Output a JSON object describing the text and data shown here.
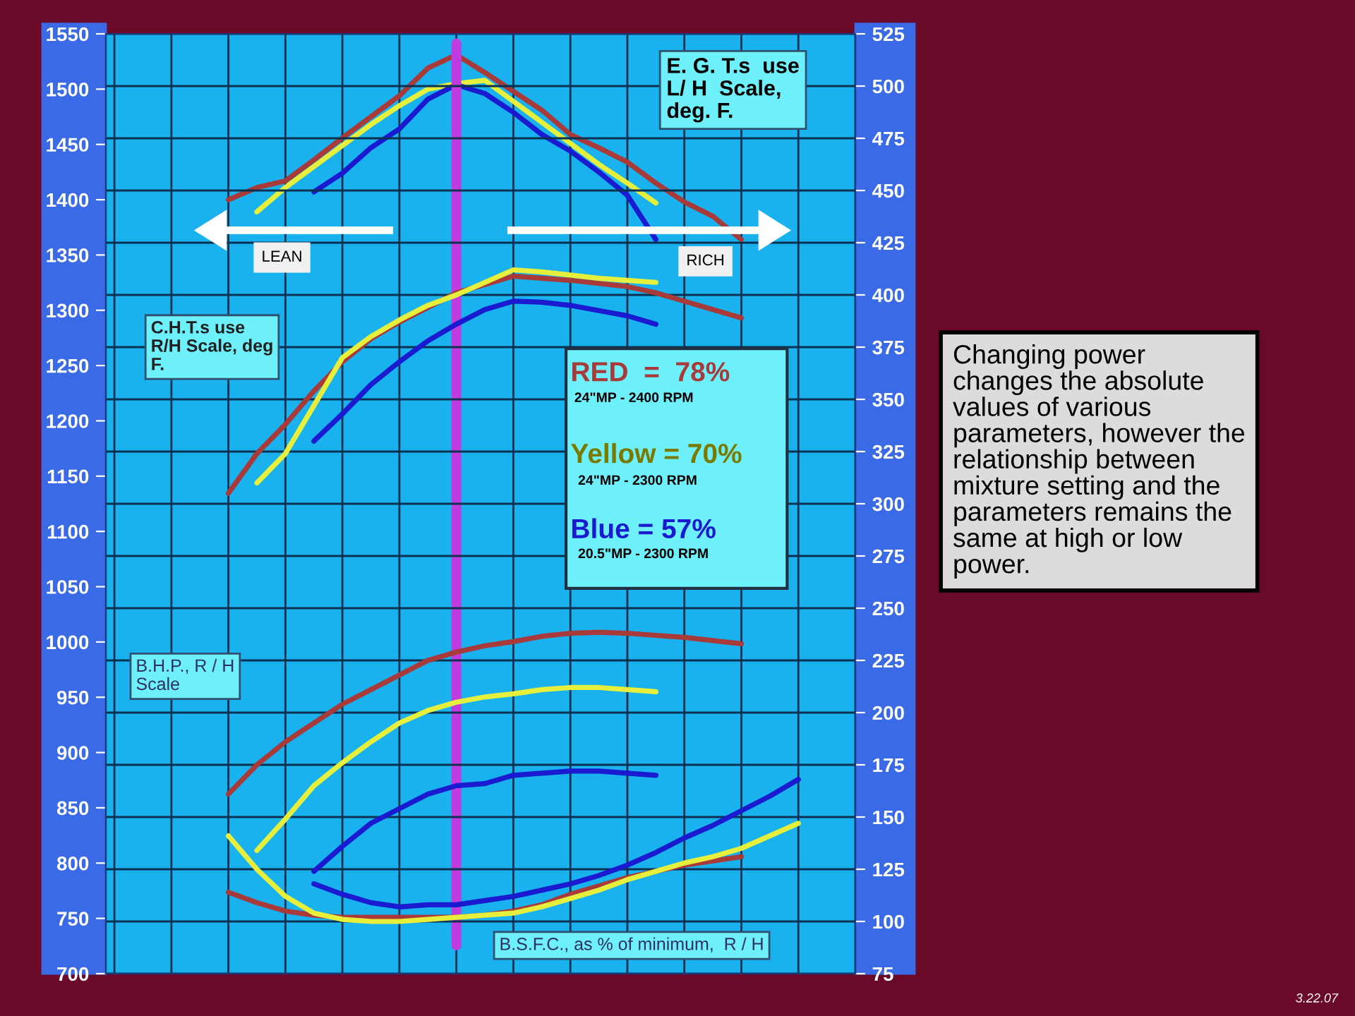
{
  "chart_data": {
    "type": "line",
    "categories": [
      null,
      null,
      null,
      null,
      null,
      null,
      null,
      null,
      null,
      null,
      null,
      null,
      null,
      null,
      null,
      null,
      null,
      null,
      null,
      null,
      null,
      null,
      null,
      null,
      null,
      null,
      null
    ],
    "ylim": [
      700,
      1550
    ],
    "yticks": [
      700,
      750,
      800,
      850,
      900,
      950,
      1000,
      1050,
      1100,
      1150,
      1200,
      1250,
      1300,
      1350,
      1400,
      1450,
      1500,
      1550
    ],
    "y2lim": [
      75,
      525
    ],
    "y2ticks": [
      75,
      100,
      125,
      150,
      175,
      200,
      225,
      250,
      275,
      300,
      325,
      350,
      375,
      400,
      425,
      450,
      475,
      500,
      525
    ],
    "tick_labels": "y",
    "grid": true,
    "legend": false,
    "marker": "none",
    "line_style": "solid",
    "series": [
      {
        "color": "#a83a3a",
        "values": [
          null,
          null,
          null,
          null,
          1400,
          1411,
          1417,
          1436,
          1456,
          1475,
          1494,
          1519,
          1531,
          1515,
          1498,
          1481,
          1459,
          1447,
          1434,
          1415,
          1398,
          1385,
          1364,
          null,
          null,
          null,
          null
        ]
      },
      {
        "color": "#e6f03c",
        "values": [
          null,
          null,
          null,
          null,
          null,
          1389,
          1411,
          1430,
          1449,
          1468,
          1485,
          1500,
          1505,
          1508,
          1489,
          1470,
          1451,
          1432,
          1415,
          1397,
          null,
          null,
          null,
          null,
          null,
          null,
          null
        ]
      },
      {
        "color": "#1a1ad0",
        "values": [
          null,
          null,
          null,
          null,
          null,
          null,
          null,
          1407,
          1424,
          1447,
          1464,
          1491,
          1504,
          1496,
          1479,
          1459,
          1444,
          1425,
          1404,
          1364,
          null,
          null,
          null,
          null,
          null,
          null,
          null
        ]
      },
      {
        "color": "#a83a3a",
        "axis": "y2",
        "values": [
          null,
          null,
          null,
          null,
          305,
          324,
          338,
          354,
          368,
          379,
          387,
          394,
          401,
          405,
          409,
          408,
          407,
          405.5,
          404,
          401,
          397,
          393,
          389,
          null,
          null,
          null,
          null
        ]
      },
      {
        "color": "#e6f03c",
        "axis": "y2",
        "values": [
          null,
          null,
          null,
          null,
          null,
          310,
          324,
          347,
          370,
          380,
          388,
          395,
          400,
          406,
          412,
          411,
          409.5,
          408,
          407,
          406,
          null,
          null,
          null,
          null,
          null,
          null,
          null
        ]
      },
      {
        "color": "#1a1ad0",
        "axis": "y2",
        "values": [
          null,
          null,
          null,
          null,
          null,
          null,
          null,
          330,
          343,
          357,
          368,
          378,
          386,
          393,
          397,
          396.5,
          395,
          392.5,
          390,
          386,
          null,
          null,
          null,
          null,
          null,
          null,
          null
        ]
      },
      {
        "color": "#a83a3a",
        "axis": "y2",
        "values": [
          null,
          null,
          null,
          null,
          161,
          175,
          186,
          195,
          204,
          211,
          218,
          225,
          229,
          232,
          234,
          236.5,
          238,
          238.5,
          238,
          237,
          236,
          234.5,
          233,
          null,
          null,
          null,
          null
        ]
      },
      {
        "color": "#e6f03c",
        "axis": "y2",
        "values": [
          null,
          null,
          null,
          null,
          null,
          134,
          149,
          165,
          176,
          186,
          195,
          201,
          205,
          207.5,
          209,
          211,
          212,
          212,
          211,
          210,
          null,
          null,
          null,
          null,
          null,
          null,
          null
        ]
      },
      {
        "color": "#1a1ad0",
        "axis": "y2",
        "values": [
          null,
          null,
          null,
          null,
          null,
          null,
          null,
          124,
          136,
          147,
          154,
          161,
          165,
          166,
          170,
          171,
          172,
          172,
          171,
          170,
          null,
          null,
          null,
          null,
          null,
          null,
          null
        ]
      },
      {
        "color": "#a83a3a",
        "axis": "y2",
        "values": [
          null,
          null,
          null,
          null,
          114,
          109,
          105,
          103,
          102,
          102,
          102,
          102,
          102,
          103,
          105,
          108,
          113,
          117,
          121,
          124,
          127,
          129,
          131,
          null,
          null,
          null,
          null
        ]
      },
      {
        "color": "#e6f03c",
        "axis": "y2",
        "values": [
          null,
          null,
          null,
          null,
          141,
          125,
          112,
          104,
          101,
          100,
          100,
          101,
          102,
          103,
          104,
          107,
          111,
          115,
          120,
          124,
          128,
          131,
          135,
          141,
          147,
          null,
          null
        ]
      },
      {
        "color": "#1a1ad0",
        "axis": "y2",
        "values": [
          null,
          null,
          null,
          null,
          null,
          null,
          null,
          118,
          113,
          109,
          107,
          108,
          108,
          110,
          112,
          115,
          118,
          122,
          127,
          133,
          140,
          146,
          153,
          160,
          168,
          null,
          null
        ]
      }
    ],
    "annotations": [
      "E. G. T.s  use\nL/ H  Scale,\ndeg. F.",
      "C.H.T.s use\nR/H Scale, deg\nF.",
      "B.H.P., R / H\nScale",
      "B.S.F.C., as % of minimum,  R / H",
      "LEAN",
      "RICH",
      "RED  =  78%",
      "24\"MP - 2400 RPM",
      "Yellow = 70%",
      "24\"MP - 2300 RPM",
      "Blue = 57%",
      "20.5\"MP - 2300 RPM",
      "Changing power\nchanges the absolute\nvalues of various\nparameters, however the\nrelationship between\nmixture setting and the\nparameters remains the\nsame at high or low\npower.",
      "3.22.07"
    ]
  }
}
